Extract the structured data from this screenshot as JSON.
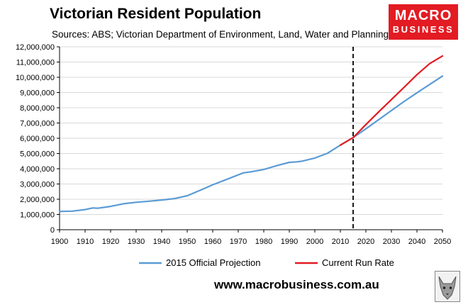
{
  "header": {
    "title": "Victorian Resident Population",
    "subtitle": "Sources: ABS; Victorian Department of Environment, Land, Water and Planning"
  },
  "logo": {
    "line1": "MACRO",
    "line2": "BUSINESS"
  },
  "footer": {
    "website": "www.macrobusiness.com.au"
  },
  "colors": {
    "official": "#5b9bd5",
    "run_rate": "#e31b23",
    "marker": "#000000"
  },
  "chart_data": {
    "type": "line",
    "title": "Victorian Resident Population",
    "xlabel": "",
    "ylabel": "",
    "xlim": [
      1900,
      2050
    ],
    "ylim": [
      0,
      12000000
    ],
    "xticks": [
      1900,
      1910,
      1920,
      1930,
      1940,
      1950,
      1960,
      1970,
      1980,
      1990,
      2000,
      2010,
      2020,
      2030,
      2040,
      2050
    ],
    "yticks": [
      0,
      1000000,
      2000000,
      3000000,
      4000000,
      5000000,
      6000000,
      7000000,
      8000000,
      9000000,
      10000000,
      11000000,
      12000000
    ],
    "xtick_labels": [
      "1900",
      "1910",
      "1920",
      "1930",
      "1940",
      "1950",
      "1960",
      "1970",
      "1980",
      "1990",
      "2000",
      "2010",
      "2020",
      "2030",
      "2040",
      "2050"
    ],
    "ytick_labels": [
      "0",
      "1,000,000",
      "2,000,000",
      "3,000,000",
      "4,000,000",
      "5,000,000",
      "6,000,000",
      "7,000,000",
      "8,000,000",
      "9,000,000",
      "10,000,000",
      "11,000,000",
      "12,000,000"
    ],
    "vertical_marker_x": 2015,
    "legend_position": "bottom",
    "series": [
      {
        "name": "2015 Official Projection",
        "color_key": "official",
        "x": [
          1900,
          1905,
          1910,
          1913,
          1915,
          1920,
          1925,
          1930,
          1935,
          1940,
          1945,
          1950,
          1955,
          1960,
          1965,
          1970,
          1972,
          1975,
          1980,
          1985,
          1990,
          1993,
          1995,
          2000,
          2005,
          2010,
          2015,
          2020,
          2025,
          2030,
          2035,
          2040,
          2045,
          2050
        ],
        "y": [
          1200000,
          1220000,
          1320000,
          1430000,
          1410000,
          1530000,
          1700000,
          1800000,
          1870000,
          1950000,
          2040000,
          2230000,
          2580000,
          2950000,
          3270000,
          3600000,
          3730000,
          3800000,
          3950000,
          4200000,
          4420000,
          4450000,
          4500000,
          4700000,
          5020000,
          5550000,
          6040000,
          6620000,
          7220000,
          7820000,
          8420000,
          8980000,
          9530000,
          10080000
        ]
      },
      {
        "name": "Current Run Rate",
        "color_key": "run_rate",
        "x": [
          2010,
          2015,
          2020,
          2025,
          2030,
          2035,
          2040,
          2045,
          2050
        ],
        "y": [
          5550000,
          6040000,
          6900000,
          7730000,
          8540000,
          9350000,
          10170000,
          10900000,
          11400000
        ]
      }
    ]
  }
}
